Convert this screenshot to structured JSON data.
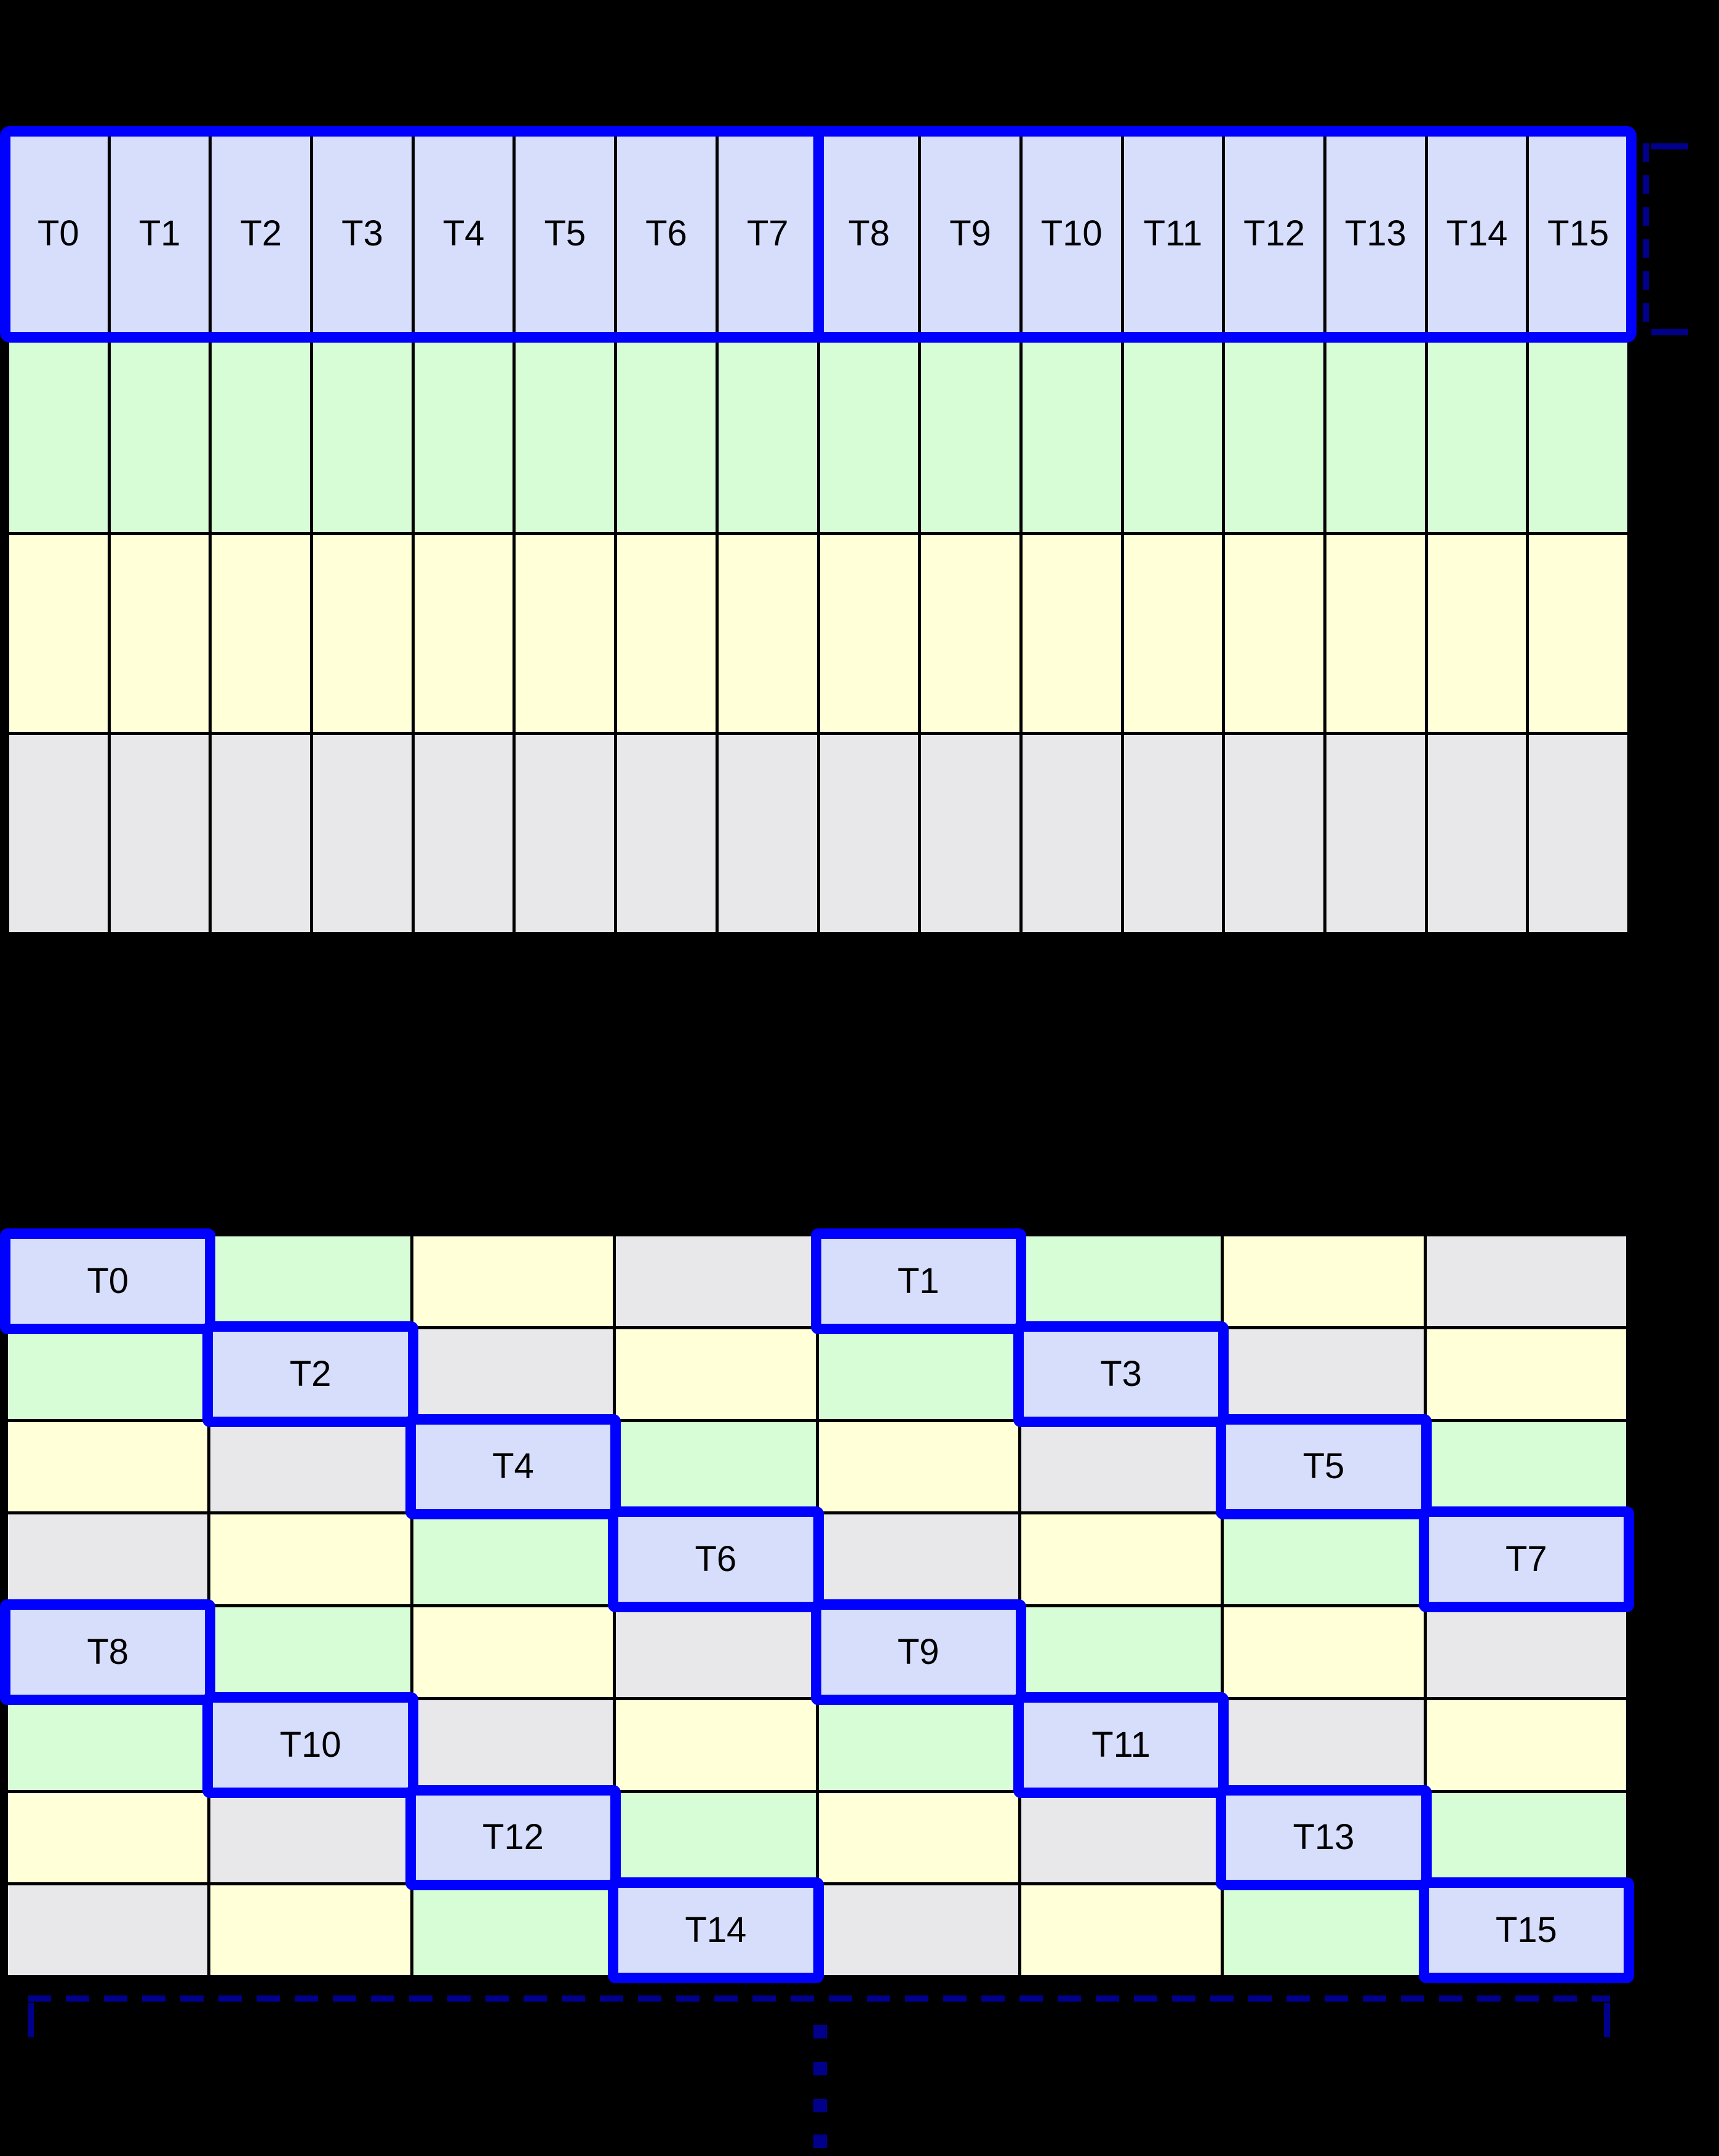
{
  "colors": {
    "background": "#000000",
    "thread_cell_fill": "#d6defc",
    "bank_green_fill": "#d6fdd6",
    "bank_yellow_fill": "#ffffd8",
    "bank_gray_fill": "#e8e8ea",
    "highlight_blue": "#0000ff",
    "bracket_navy": "#00008b",
    "grid_line": "#000000",
    "label_text": "#000000"
  },
  "linear_grid": {
    "columns": 16,
    "row_colors": [
      "thread",
      "green",
      "yellow",
      "gray"
    ],
    "thread_labels": [
      "T0",
      "T1",
      "T2",
      "T3",
      "T4",
      "T5",
      "T6",
      "T7",
      "T8",
      "T9",
      "T10",
      "T11",
      "T12",
      "T13",
      "T14",
      "T15"
    ]
  },
  "swizzled_grid": {
    "columns": 8,
    "row_cell_colors": [
      [
        "thread",
        "green",
        "yellow",
        "gray",
        "thread",
        "green",
        "yellow",
        "gray"
      ],
      [
        "green",
        "thread",
        "gray",
        "yellow",
        "green",
        "thread",
        "gray",
        "yellow"
      ],
      [
        "yellow",
        "gray",
        "thread",
        "green",
        "yellow",
        "gray",
        "thread",
        "green"
      ],
      [
        "gray",
        "yellow",
        "green",
        "thread",
        "gray",
        "yellow",
        "green",
        "thread"
      ],
      [
        "thread",
        "green",
        "yellow",
        "gray",
        "thread",
        "green",
        "yellow",
        "gray"
      ],
      [
        "green",
        "thread",
        "gray",
        "yellow",
        "green",
        "thread",
        "gray",
        "yellow"
      ],
      [
        "yellow",
        "gray",
        "thread",
        "green",
        "yellow",
        "gray",
        "thread",
        "green"
      ],
      [
        "gray",
        "yellow",
        "green",
        "thread",
        "gray",
        "yellow",
        "green",
        "thread"
      ]
    ],
    "thread_cells": [
      {
        "label": "T0",
        "row": 0,
        "col": 0
      },
      {
        "label": "T1",
        "row": 0,
        "col": 4
      },
      {
        "label": "T2",
        "row": 1,
        "col": 1
      },
      {
        "label": "T3",
        "row": 1,
        "col": 5
      },
      {
        "label": "T4",
        "row": 2,
        "col": 2
      },
      {
        "label": "T5",
        "row": 2,
        "col": 6
      },
      {
        "label": "T6",
        "row": 3,
        "col": 3
      },
      {
        "label": "T7",
        "row": 3,
        "col": 7
      },
      {
        "label": "T8",
        "row": 4,
        "col": 0
      },
      {
        "label": "T9",
        "row": 4,
        "col": 4
      },
      {
        "label": "T10",
        "row": 5,
        "col": 1
      },
      {
        "label": "T11",
        "row": 5,
        "col": 5
      },
      {
        "label": "T12",
        "row": 6,
        "col": 2
      },
      {
        "label": "T13",
        "row": 6,
        "col": 6
      },
      {
        "label": "T14",
        "row": 7,
        "col": 3
      },
      {
        "label": "T15",
        "row": 7,
        "col": 7
      }
    ]
  },
  "annotations": {
    "right_bracket_rows_spanned": 1,
    "bottom_bracket_columns_spanned": 8,
    "ellipsis_dot_count": 4
  }
}
